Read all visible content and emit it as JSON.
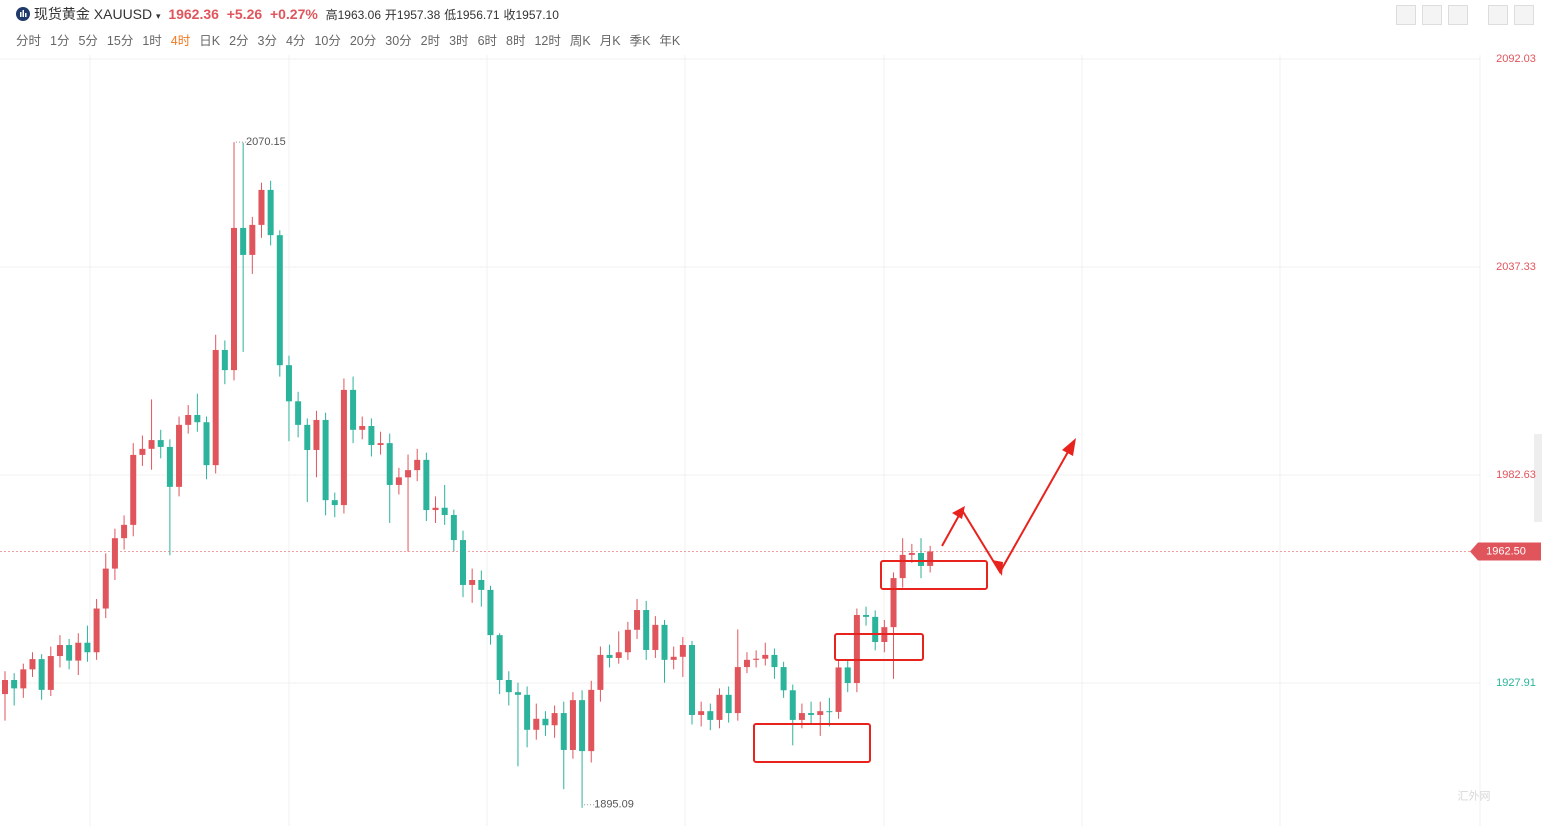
{
  "header": {
    "name": "现货黄金 XAUUSD",
    "price": "1962.36",
    "change": "+5.26",
    "change_pct": "+0.27%",
    "high_label": "高",
    "high": "1963.06",
    "open_label": "开",
    "open": "1957.38",
    "low_label": "低",
    "low": "1956.71",
    "close_label": "收",
    "close": "1957.10"
  },
  "intervals": [
    "分时",
    "1分",
    "5分",
    "15分",
    "1时",
    "4时",
    "日K",
    "2分",
    "3分",
    "4分",
    "10分",
    "20分",
    "30分",
    "2时",
    "3时",
    "6时",
    "8时",
    "12时",
    "周K",
    "月K",
    "季K",
    "年K"
  ],
  "active_interval": 5,
  "watermark": "汇外网",
  "chart_data": {
    "type": "candlestick",
    "ylim": [
      1890.3,
      2093.08
    ],
    "yticks": [
      2092.03,
      2037.33,
      1982.63,
      1927.91
    ],
    "grid": true,
    "up_color": "#e0555c",
    "down_color": "#2bb39b",
    "price_line": {
      "value": 1962.5,
      "label": "1962.50"
    },
    "open": [
      1925.0,
      1928.7,
      1926.5,
      1931.5,
      1934.2,
      1926.1,
      1935.0,
      1937.9,
      1933.8,
      1938.5,
      1936.0,
      1947.5,
      1958.0,
      1966.0,
      1969.5,
      1987.9,
      1989.5,
      1991.8,
      1990.0,
      1979.5,
      1995.8,
      1998.4,
      1996.5,
      1985.2,
      2015.5,
      2010.2,
      2047.6,
      2040.5,
      2048.4,
      2057.6,
      2045.7,
      2011.5,
      2002.0,
      1995.8,
      1989.2,
      1997.1,
      1976.0,
      1974.7,
      2005.0,
      1994.5,
      1995.5,
      1990.5,
      1991.0,
      1980.0,
      1982.0,
      1983.9,
      1986.6,
      1973.4,
      1974.0,
      1972.1,
      1965.5,
      1953.7,
      1955.0,
      1952.4,
      1940.5,
      1928.7,
      1925.5,
      1924.8,
      1915.6,
      1918.5,
      1916.8,
      1920.0,
      1910.3,
      1923.4,
      1910.0,
      1926.1,
      1935.3,
      1934.5,
      1936.0,
      1941.9,
      1947.1,
      1936.6,
      1943.2,
      1934.0,
      1934.8,
      1937.9,
      1919.5,
      1920.5,
      1918.2,
      1924.8,
      1920.0,
      1932.1,
      1934.0,
      1934.3,
      1935.3,
      1932.1,
      1926.0,
      1918.2,
      1920.0,
      1919.5,
      1920.5,
      1920.3,
      1932.0,
      1927.9,
      1945.8,
      1945.3,
      1938.7,
      1942.6,
      1955.5,
      1961.6,
      1962.1,
      1958.7
    ],
    "high": [
      1931.0,
      1930.5,
      1933.0,
      1936.0,
      1935.5,
      1937.5,
      1940.5,
      1939.5,
      1941.0,
      1943.0,
      1950.0,
      1962.0,
      1968.5,
      1972.0,
      1991.0,
      1993.0,
      2002.5,
      1994.5,
      1992.0,
      1998.0,
      2001.0,
      2004.0,
      1998.0,
      2019.5,
      2018.0,
      2070.15,
      2070.0,
      2050.5,
      2059.5,
      2060.0,
      2047.0,
      2014.0,
      2004.5,
      1997.5,
      1999.5,
      1999.0,
      1978.0,
      2008.0,
      2008.5,
      1998.0,
      1997.5,
      1994.0,
      1993.5,
      1984.5,
      1988.0,
      1989.5,
      1988.5,
      1977.0,
      1980.0,
      1973.5,
      1968.0,
      1958.0,
      1957.5,
      1953.5,
      1941.0,
      1931.0,
      1928.0,
      1927.0,
      1922.5,
      1920.5,
      1922.0,
      1923.0,
      1925.5,
      1926.0,
      1928.5,
      1937.5,
      1938.0,
      1941.5,
      1944.0,
      1950.0,
      1949.5,
      1945.5,
      1944.5,
      1937.5,
      1940.0,
      1939.0,
      1923.0,
      1922.5,
      1926.5,
      1927.0,
      1942.0,
      1936.0,
      1936.5,
      1938.5,
      1937.0,
      1933.5,
      1927.5,
      1922.5,
      1923.0,
      1923.0,
      1924.0,
      1934.0,
      1934.0,
      1947.5,
      1948.0,
      1947.0,
      1944.5,
      1957.0,
      1966.0,
      1964.5,
      1966.0,
      1964.0
    ],
    "low": [
      1918.0,
      1922.0,
      1924.0,
      1929.5,
      1923.5,
      1924.5,
      1932.0,
      1931.5,
      1930.0,
      1933.5,
      1934.0,
      1945.0,
      1955.0,
      1963.0,
      1966.5,
      1985.0,
      1984.0,
      1987.0,
      1961.5,
      1977.0,
      1993.5,
      1994.0,
      1981.5,
      1983.0,
      2006.5,
      2007.5,
      2015.0,
      2035.5,
      2045.0,
      2043.0,
      2008.5,
      1991.5,
      1992.5,
      1975.5,
      1982.0,
      1972.0,
      1971.5,
      1972.5,
      1991.0,
      1992.0,
      1987.5,
      1988.0,
      1970.0,
      1977.5,
      1962.5,
      1981.0,
      1970.5,
      1970.0,
      1969.5,
      1962.5,
      1950.5,
      1949.0,
      1948.0,
      1938.0,
      1925.0,
      1922.0,
      1906.0,
      1911.0,
      1913.0,
      1914.0,
      1913.5,
      1900.0,
      1908.0,
      1895.09,
      1907.0,
      1923.0,
      1932.0,
      1933.0,
      1934.0,
      1939.5,
      1934.0,
      1934.5,
      1928.0,
      1931.5,
      1929.5,
      1917.0,
      1916.5,
      1915.5,
      1916.0,
      1917.5,
      1918.0,
      1930.5,
      1932.0,
      1932.5,
      1929.0,
      1924.0,
      1911.5,
      1916.0,
      1917.0,
      1914.0,
      1916.5,
      1918.5,
      1925.5,
      1925.5,
      1943.0,
      1936.5,
      1936.0,
      1929.0,
      1953.0,
      1959.5,
      1955.5,
      1957.0
    ],
    "close": [
      1928.7,
      1926.5,
      1931.5,
      1934.2,
      1926.1,
      1935.0,
      1937.9,
      1933.8,
      1938.5,
      1936.0,
      1947.5,
      1958.0,
      1966.0,
      1969.5,
      1987.9,
      1989.5,
      1991.8,
      1990.0,
      1979.5,
      1995.8,
      1998.4,
      1996.5,
      1985.2,
      2015.5,
      2010.2,
      2047.6,
      2040.5,
      2048.4,
      2057.6,
      2045.7,
      2011.5,
      2002.0,
      1995.8,
      1989.2,
      1997.1,
      1976.0,
      1974.7,
      2005.0,
      1994.5,
      1995.5,
      1990.5,
      1991.0,
      1980.0,
      1982.0,
      1983.9,
      1986.6,
      1973.4,
      1974.0,
      1972.1,
      1965.5,
      1953.7,
      1955.0,
      1952.4,
      1940.5,
      1928.7,
      1925.5,
      1924.8,
      1915.6,
      1918.5,
      1916.8,
      1920.0,
      1910.3,
      1923.4,
      1910.0,
      1926.1,
      1935.3,
      1934.5,
      1936.0,
      1941.9,
      1947.1,
      1936.6,
      1943.2,
      1934.0,
      1934.8,
      1937.9,
      1919.5,
      1920.5,
      1918.2,
      1924.8,
      1920.0,
      1932.1,
      1934.0,
      1934.3,
      1935.3,
      1932.1,
      1926.0,
      1918.2,
      1920.0,
      1919.5,
      1920.5,
      1920.3,
      1932.0,
      1927.9,
      1945.8,
      1945.3,
      1938.7,
      1942.6,
      1955.5,
      1961.6,
      1962.1,
      1958.7,
      1962.5
    ]
  }
}
